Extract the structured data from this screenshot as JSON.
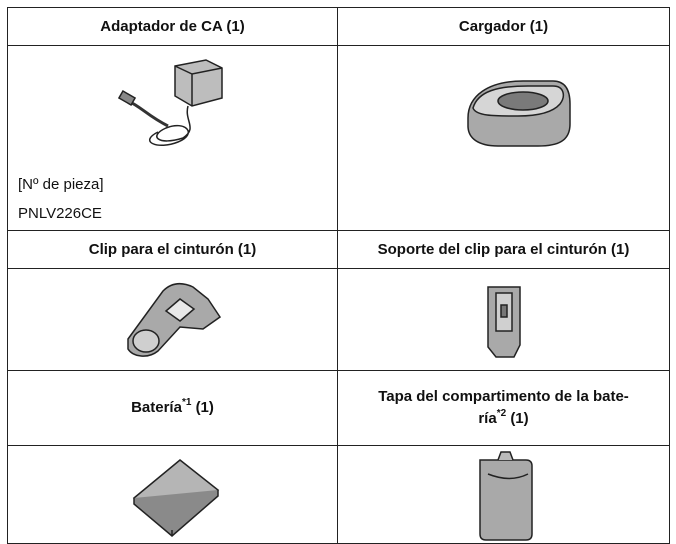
{
  "items": [
    {
      "title": "Adaptador de CA (1)",
      "part_label": "[Nº de pieza]",
      "part_number": "PNLV226CE"
    },
    {
      "title": "Cargador (1)"
    },
    {
      "title": "Clip para el cinturón (1)"
    },
    {
      "title": "Soporte del clip para el cinturón (1)"
    },
    {
      "title": "Batería",
      "note": "*1",
      "qty": "(1)"
    },
    {
      "title_lines": [
        "Tapa del compartimento de la bate-",
        "ría"
      ],
      "note": "*2",
      "qty": "(1)"
    }
  ]
}
